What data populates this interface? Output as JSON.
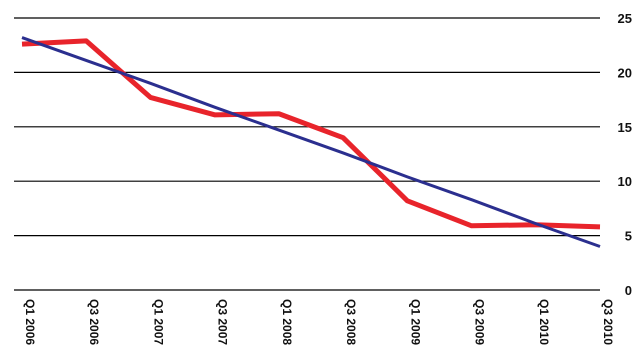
{
  "chart_data": {
    "type": "line",
    "title": "",
    "xlabel": "",
    "ylabel": "",
    "ylim": [
      0,
      25
    ],
    "y_ticks": [
      "0",
      "5",
      "10",
      "15",
      "20",
      "25"
    ],
    "y_axis_side": "right",
    "grid": "horizontal",
    "legend": "none",
    "categories": [
      "Q1 2006",
      "Q3 2006",
      "Q1 2007",
      "Q3 2007",
      "Q1 2008",
      "Q3 2008",
      "Q1 2009",
      "Q3 2009",
      "Q1 2010",
      "Q3 2010"
    ],
    "series": [
      {
        "color": "#e8242b",
        "style": "line",
        "values": [
          22.6,
          22.9,
          17.7,
          16.1,
          16.2,
          14.0,
          8.2,
          5.9,
          6.0,
          5.8
        ]
      },
      {
        "color": "#2b2f8f",
        "style": "trend",
        "values": [
          23.2,
          21.1,
          19.0,
          16.8,
          14.7,
          12.6,
          10.4,
          8.3,
          6.1,
          4.0
        ]
      }
    ]
  }
}
